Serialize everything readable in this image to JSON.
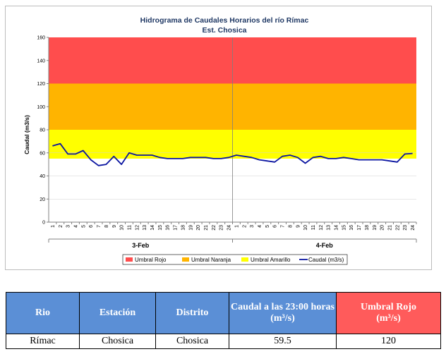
{
  "chart_data": {
    "type": "line",
    "title": "Hidrograma de Caudales Horarios del río Rímac",
    "subtitle": "Est. Chosica",
    "ylabel": "Caudal (m3/s)",
    "ylim": [
      0,
      160
    ],
    "yticks": [
      0,
      20,
      40,
      60,
      80,
      100,
      120,
      140,
      160
    ],
    "x_tick_labels": [
      "1",
      "2",
      "3",
      "4",
      "5",
      "6",
      "7",
      "8",
      "9",
      "10",
      "11",
      "12",
      "13",
      "14",
      "15",
      "16",
      "17",
      "18",
      "19",
      "20",
      "21",
      "22",
      "23",
      "24",
      "1",
      "2",
      "3",
      "4",
      "5",
      "6",
      "7",
      "8",
      "9",
      "10",
      "11",
      "12",
      "13",
      "14",
      "15",
      "16",
      "17",
      "18",
      "19",
      "20",
      "21",
      "22",
      "23",
      "24"
    ],
    "days": [
      "3-Feb",
      "4-Feb"
    ],
    "bands": [
      {
        "name": "Umbral Rojo",
        "from": 120,
        "to": 160,
        "color": "#ff4d4d"
      },
      {
        "name": "Umbral Naranja",
        "from": 80,
        "to": 120,
        "color": "#ffb400"
      },
      {
        "name": "Umbral Amarillo",
        "from": 55,
        "to": 80,
        "color": "#ffff00"
      }
    ],
    "series": [
      {
        "name": "Caudal (m3/s)",
        "color": "#0a14a0",
        "values": [
          66,
          68,
          59,
          59,
          62,
          54,
          49,
          50,
          57,
          50,
          60,
          58,
          58,
          58,
          56,
          55,
          55,
          55,
          56,
          56,
          56,
          55,
          55,
          56,
          58,
          57,
          56,
          54,
          53,
          52,
          57,
          58,
          56,
          51,
          56,
          57,
          55,
          55,
          56,
          55,
          54,
          54,
          54,
          54,
          53,
          52,
          59,
          59.5
        ]
      }
    ],
    "legend_position": "bottom"
  },
  "table": {
    "headers": [
      "Rio",
      "Estación",
      "Distrito",
      "Caudal a las 23:00 horas",
      "Umbral Rojo"
    ],
    "unit": "(m³/s)",
    "row": [
      "Rímac",
      "Chosica",
      "Chosica",
      "59.5",
      "120"
    ]
  }
}
